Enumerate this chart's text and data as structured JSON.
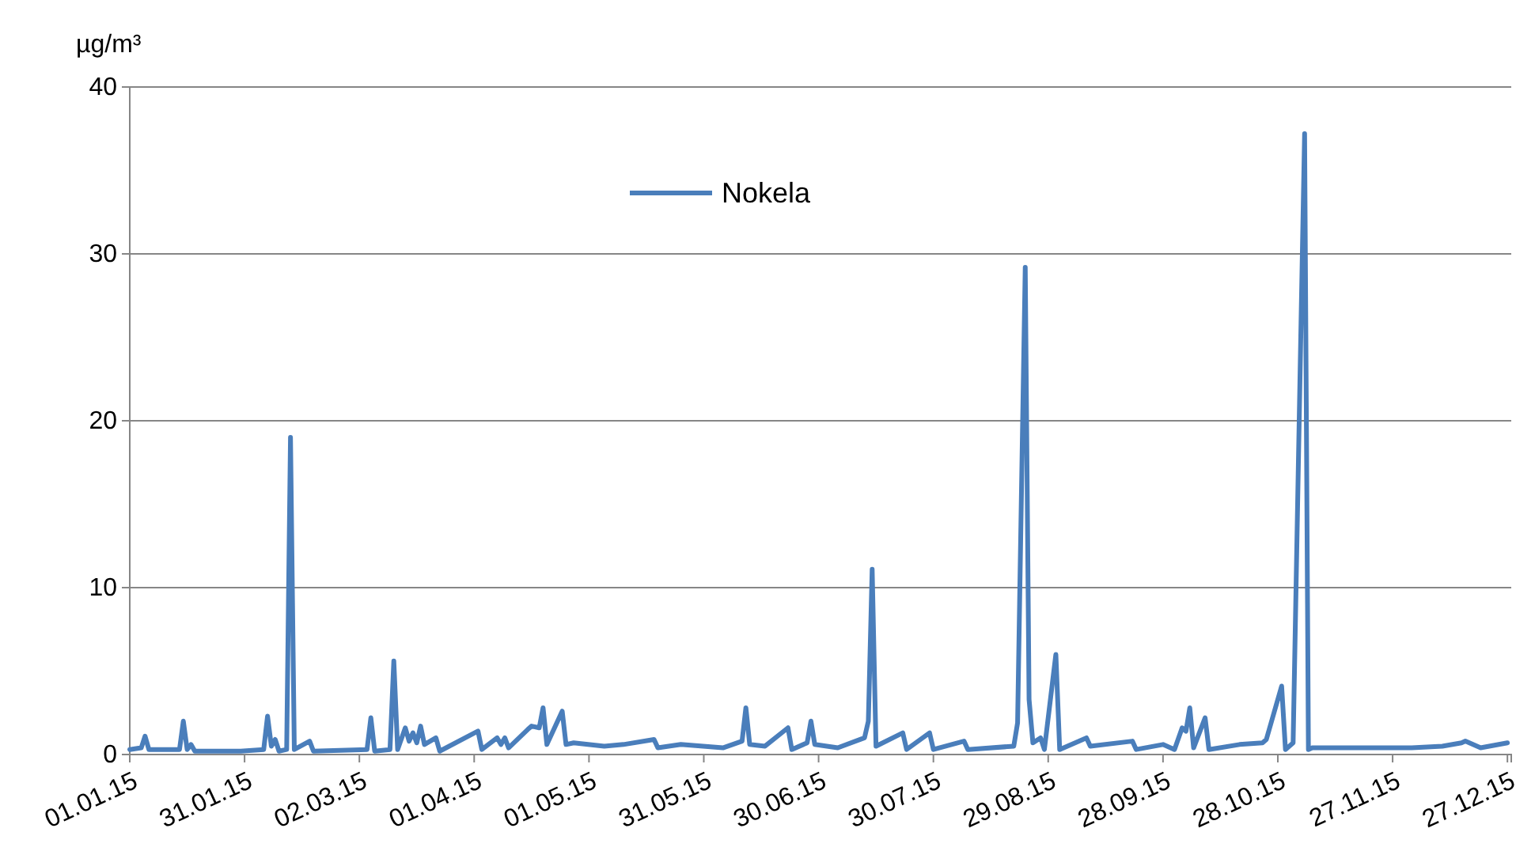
{
  "chart_data": {
    "type": "line",
    "ylabel": "µg/m³",
    "xlim": [
      "2015-01-01",
      "2015-12-28"
    ],
    "xticks": [
      {
        "value": "2015-01-01",
        "label": "01.01.15"
      },
      {
        "value": "2015-01-31",
        "label": "31.01.15"
      },
      {
        "value": "2015-03-02",
        "label": "02.03.15"
      },
      {
        "value": "2015-04-01",
        "label": "01.04.15"
      },
      {
        "value": "2015-05-01",
        "label": "01.05.15"
      },
      {
        "value": "2015-05-31",
        "label": "31.05.15"
      },
      {
        "value": "2015-06-30",
        "label": "30.06.15"
      },
      {
        "value": "2015-07-30",
        "label": "30.07.15"
      },
      {
        "value": "2015-08-29",
        "label": "29.08.15"
      },
      {
        "value": "2015-09-28",
        "label": "28.09.15"
      },
      {
        "value": "2015-10-28",
        "label": "28.10.15"
      },
      {
        "value": "2015-11-27",
        "label": "27.11.15"
      },
      {
        "value": "2015-12-27",
        "label": "27.12.15"
      }
    ],
    "ylim": [
      0,
      40
    ],
    "yticks": [
      0,
      10,
      20,
      30,
      40
    ],
    "grid": "y",
    "legend": "top",
    "marker": "none",
    "line_style": "solid",
    "x": [
      "2015-01-01",
      "2015-01-04",
      "2015-01-05",
      "2015-01-06",
      "2015-01-14",
      "2015-01-15",
      "2015-01-16",
      "2015-01-17",
      "2015-01-18",
      "2015-01-30",
      "2015-02-05",
      "2015-02-06",
      "2015-02-07",
      "2015-02-08",
      "2015-02-09",
      "2015-02-11",
      "2015-02-12",
      "2015-02-13",
      "2015-02-17",
      "2015-02-18",
      "2015-03-04",
      "2015-03-05",
      "2015-03-06",
      "2015-03-10",
      "2015-03-11",
      "2015-03-12",
      "2015-03-14",
      "2015-03-15",
      "2015-03-16",
      "2015-03-17",
      "2015-03-18",
      "2015-03-19",
      "2015-03-22",
      "2015-03-23",
      "2015-04-02",
      "2015-04-03",
      "2015-04-07",
      "2015-04-08",
      "2015-04-09",
      "2015-04-10",
      "2015-04-15",
      "2015-04-16",
      "2015-04-18",
      "2015-04-19",
      "2015-04-20",
      "2015-04-24",
      "2015-04-25",
      "2015-04-27",
      "2015-05-05",
      "2015-05-10",
      "2015-05-18",
      "2015-05-19",
      "2015-05-25",
      "2015-06-05",
      "2015-06-10",
      "2015-06-11",
      "2015-06-12",
      "2015-06-16",
      "2015-06-22",
      "2015-06-23",
      "2015-06-27",
      "2015-06-28",
      "2015-06-29",
      "2015-07-05",
      "2015-07-12",
      "2015-07-13",
      "2015-07-14",
      "2015-07-15",
      "2015-07-22",
      "2015-07-23",
      "2015-07-29",
      "2015-07-30",
      "2015-08-07",
      "2015-08-08",
      "2015-08-20",
      "2015-08-21",
      "2015-08-23",
      "2015-08-24",
      "2015-08-25",
      "2015-08-27",
      "2015-08-28",
      "2015-08-31",
      "2015-09-01",
      "2015-09-08",
      "2015-09-09",
      "2015-09-20",
      "2015-09-21",
      "2015-09-28",
      "2015-10-01",
      "2015-10-03",
      "2015-10-04",
      "2015-10-05",
      "2015-10-06",
      "2015-10-09",
      "2015-10-10",
      "2015-10-18",
      "2015-10-24",
      "2015-10-25",
      "2015-10-29",
      "2015-10-30",
      "2015-11-01",
      "2015-11-04",
      "2015-11-05",
      "2015-11-06",
      "2015-11-20",
      "2015-12-02",
      "2015-12-10",
      "2015-12-15",
      "2015-12-16",
      "2015-12-20",
      "2015-12-27"
    ],
    "series": [
      {
        "name": "Nokela",
        "color": "#4a7ebb",
        "values": [
          0.3,
          0.4,
          1.1,
          0.3,
          0.3,
          2.0,
          0.3,
          0.6,
          0.2,
          0.2,
          0.3,
          2.3,
          0.5,
          0.9,
          0.2,
          0.3,
          19.0,
          0.3,
          0.8,
          0.2,
          0.3,
          2.2,
          0.2,
          0.3,
          5.6,
          0.3,
          1.6,
          0.8,
          1.3,
          0.7,
          1.7,
          0.6,
          1.0,
          0.2,
          1.4,
          0.3,
          1.0,
          0.6,
          1.0,
          0.4,
          1.5,
          1.7,
          1.6,
          2.8,
          0.6,
          2.6,
          0.6,
          0.7,
          0.5,
          0.6,
          0.9,
          0.4,
          0.6,
          0.4,
          0.8,
          2.8,
          0.6,
          0.5,
          1.6,
          0.3,
          0.7,
          2.0,
          0.6,
          0.4,
          1.0,
          2.0,
          11.1,
          0.5,
          1.3,
          0.3,
          1.3,
          0.3,
          0.8,
          0.3,
          0.5,
          1.9,
          29.2,
          3.3,
          0.7,
          1.0,
          0.3,
          6.0,
          0.3,
          1.0,
          0.5,
          0.8,
          0.3,
          0.6,
          0.3,
          1.6,
          1.4,
          2.8,
          0.4,
          2.2,
          0.3,
          0.6,
          0.7,
          0.9,
          4.1,
          0.3,
          0.7,
          37.2,
          0.3,
          0.4,
          0.4,
          0.4,
          0.5,
          0.7,
          0.8,
          0.4,
          0.7
        ]
      }
    ]
  }
}
